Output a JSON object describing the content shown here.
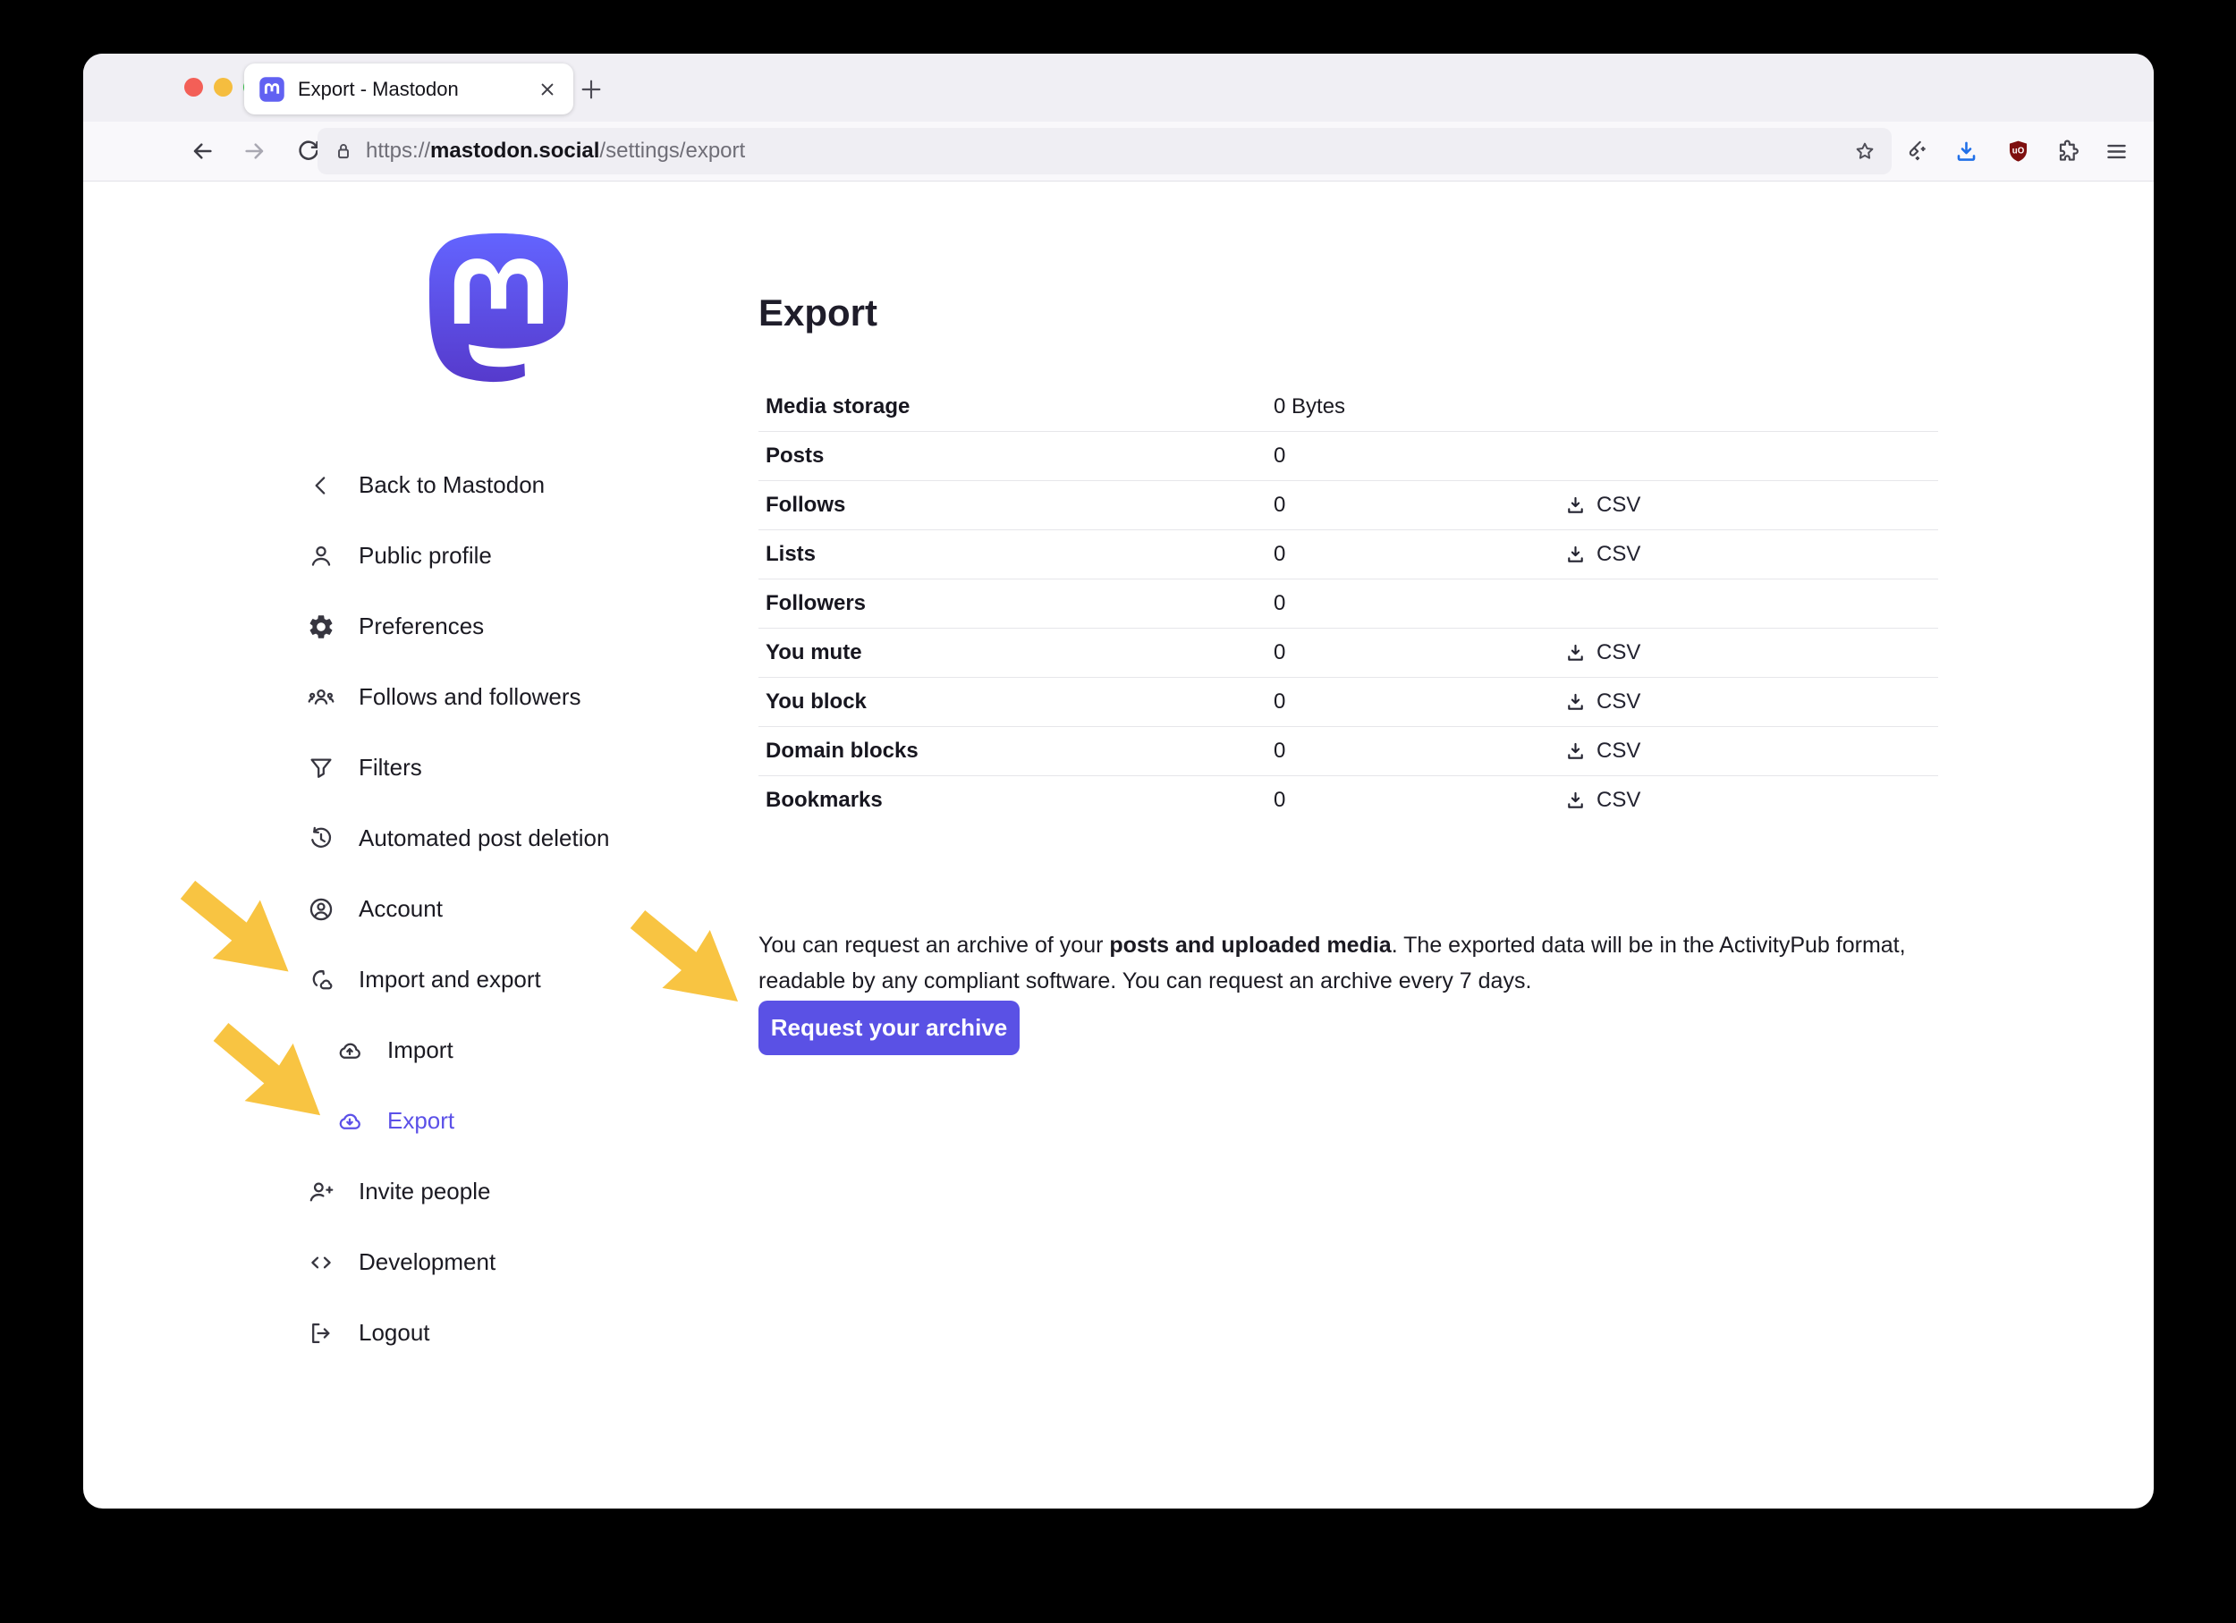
{
  "browser": {
    "window_controls": [
      "close",
      "minimize",
      "zoom"
    ],
    "tab": {
      "title": "Export - Mastodon",
      "favicon": "mastodon-icon",
      "close_icon": "close-icon"
    },
    "new_tab_icon": "plus-icon",
    "nav_icons": [
      "back-icon",
      "forward-icon",
      "reload-icon",
      "home-icon"
    ],
    "url": {
      "scheme": "https://",
      "host": "mastodon.social",
      "path": "/settings/export"
    },
    "urlbar_icons": [
      "lock-icon",
      "star-icon"
    ],
    "toolbar_right_icons": [
      "broom-icon",
      "download-icon",
      "ublock-shield-icon",
      "puzzle-icon",
      "menu-icon"
    ],
    "ublock_badge_text": "uO"
  },
  "sidebar": {
    "logo": "mastodon-logo",
    "items": [
      {
        "label": "Back to Mastodon",
        "icon": "chevron-left-icon"
      },
      {
        "label": "Public profile",
        "icon": "person-icon"
      },
      {
        "label": "Preferences",
        "icon": "gear-icon"
      },
      {
        "label": "Follows and followers",
        "icon": "group-icon"
      },
      {
        "label": "Filters",
        "icon": "funnel-icon"
      },
      {
        "label": "Automated post deletion",
        "icon": "history-icon"
      },
      {
        "label": "Account",
        "icon": "account-circle-icon"
      },
      {
        "label": "Import and export",
        "icon": "import-export-icon"
      },
      {
        "label": "Import",
        "icon": "cloud-upload-icon",
        "indent": true
      },
      {
        "label": "Export",
        "icon": "cloud-download-icon",
        "indent": true,
        "active": true
      },
      {
        "label": "Invite people",
        "icon": "person-add-icon"
      },
      {
        "label": "Development",
        "icon": "code-icon"
      },
      {
        "label": "Logout",
        "icon": "logout-icon"
      }
    ]
  },
  "main": {
    "heading": "Export",
    "table": {
      "csv_label": "CSV",
      "csv_icon": "download-tray-icon",
      "rows": [
        {
          "label": "Media storage",
          "value": "0 Bytes",
          "csv": false
        },
        {
          "label": "Posts",
          "value": "0",
          "csv": false
        },
        {
          "label": "Follows",
          "value": "0",
          "csv": true
        },
        {
          "label": "Lists",
          "value": "0",
          "csv": true
        },
        {
          "label": "Followers",
          "value": "0",
          "csv": false
        },
        {
          "label": "You mute",
          "value": "0",
          "csv": true
        },
        {
          "label": "You block",
          "value": "0",
          "csv": true
        },
        {
          "label": "Domain blocks",
          "value": "0",
          "csv": true
        },
        {
          "label": "Bookmarks",
          "value": "0",
          "csv": true
        }
      ]
    },
    "paragraph": {
      "before_bold": "You can request an archive of your ",
      "bold": "posts and uploaded media",
      "after_bold": ". The exported data will be in the ActivityPub format, readable by any compliant software. You can request an archive every 7 days."
    },
    "button_label": "Request your archive"
  },
  "annotations": {
    "arrows": [
      {
        "icon": "annotation-arrow-icon",
        "points_to": "Import and export"
      },
      {
        "icon": "annotation-arrow-icon",
        "points_to": "Export"
      },
      {
        "icon": "annotation-arrow-icon",
        "points_to": "Request your archive"
      }
    ]
  },
  "colors": {
    "accent": "#5b50e8",
    "button": "#5a51e5",
    "annotation_arrow": "#f8c442",
    "traffic_red": "#f35f57",
    "traffic_yellow": "#f5bd3f",
    "traffic_green": "#34c748",
    "download_blue": "#2170e8",
    "ublock_red": "#7e0f0f",
    "logo_gradient_top": "#6364ff",
    "logo_gradient_bottom": "#563acc"
  }
}
